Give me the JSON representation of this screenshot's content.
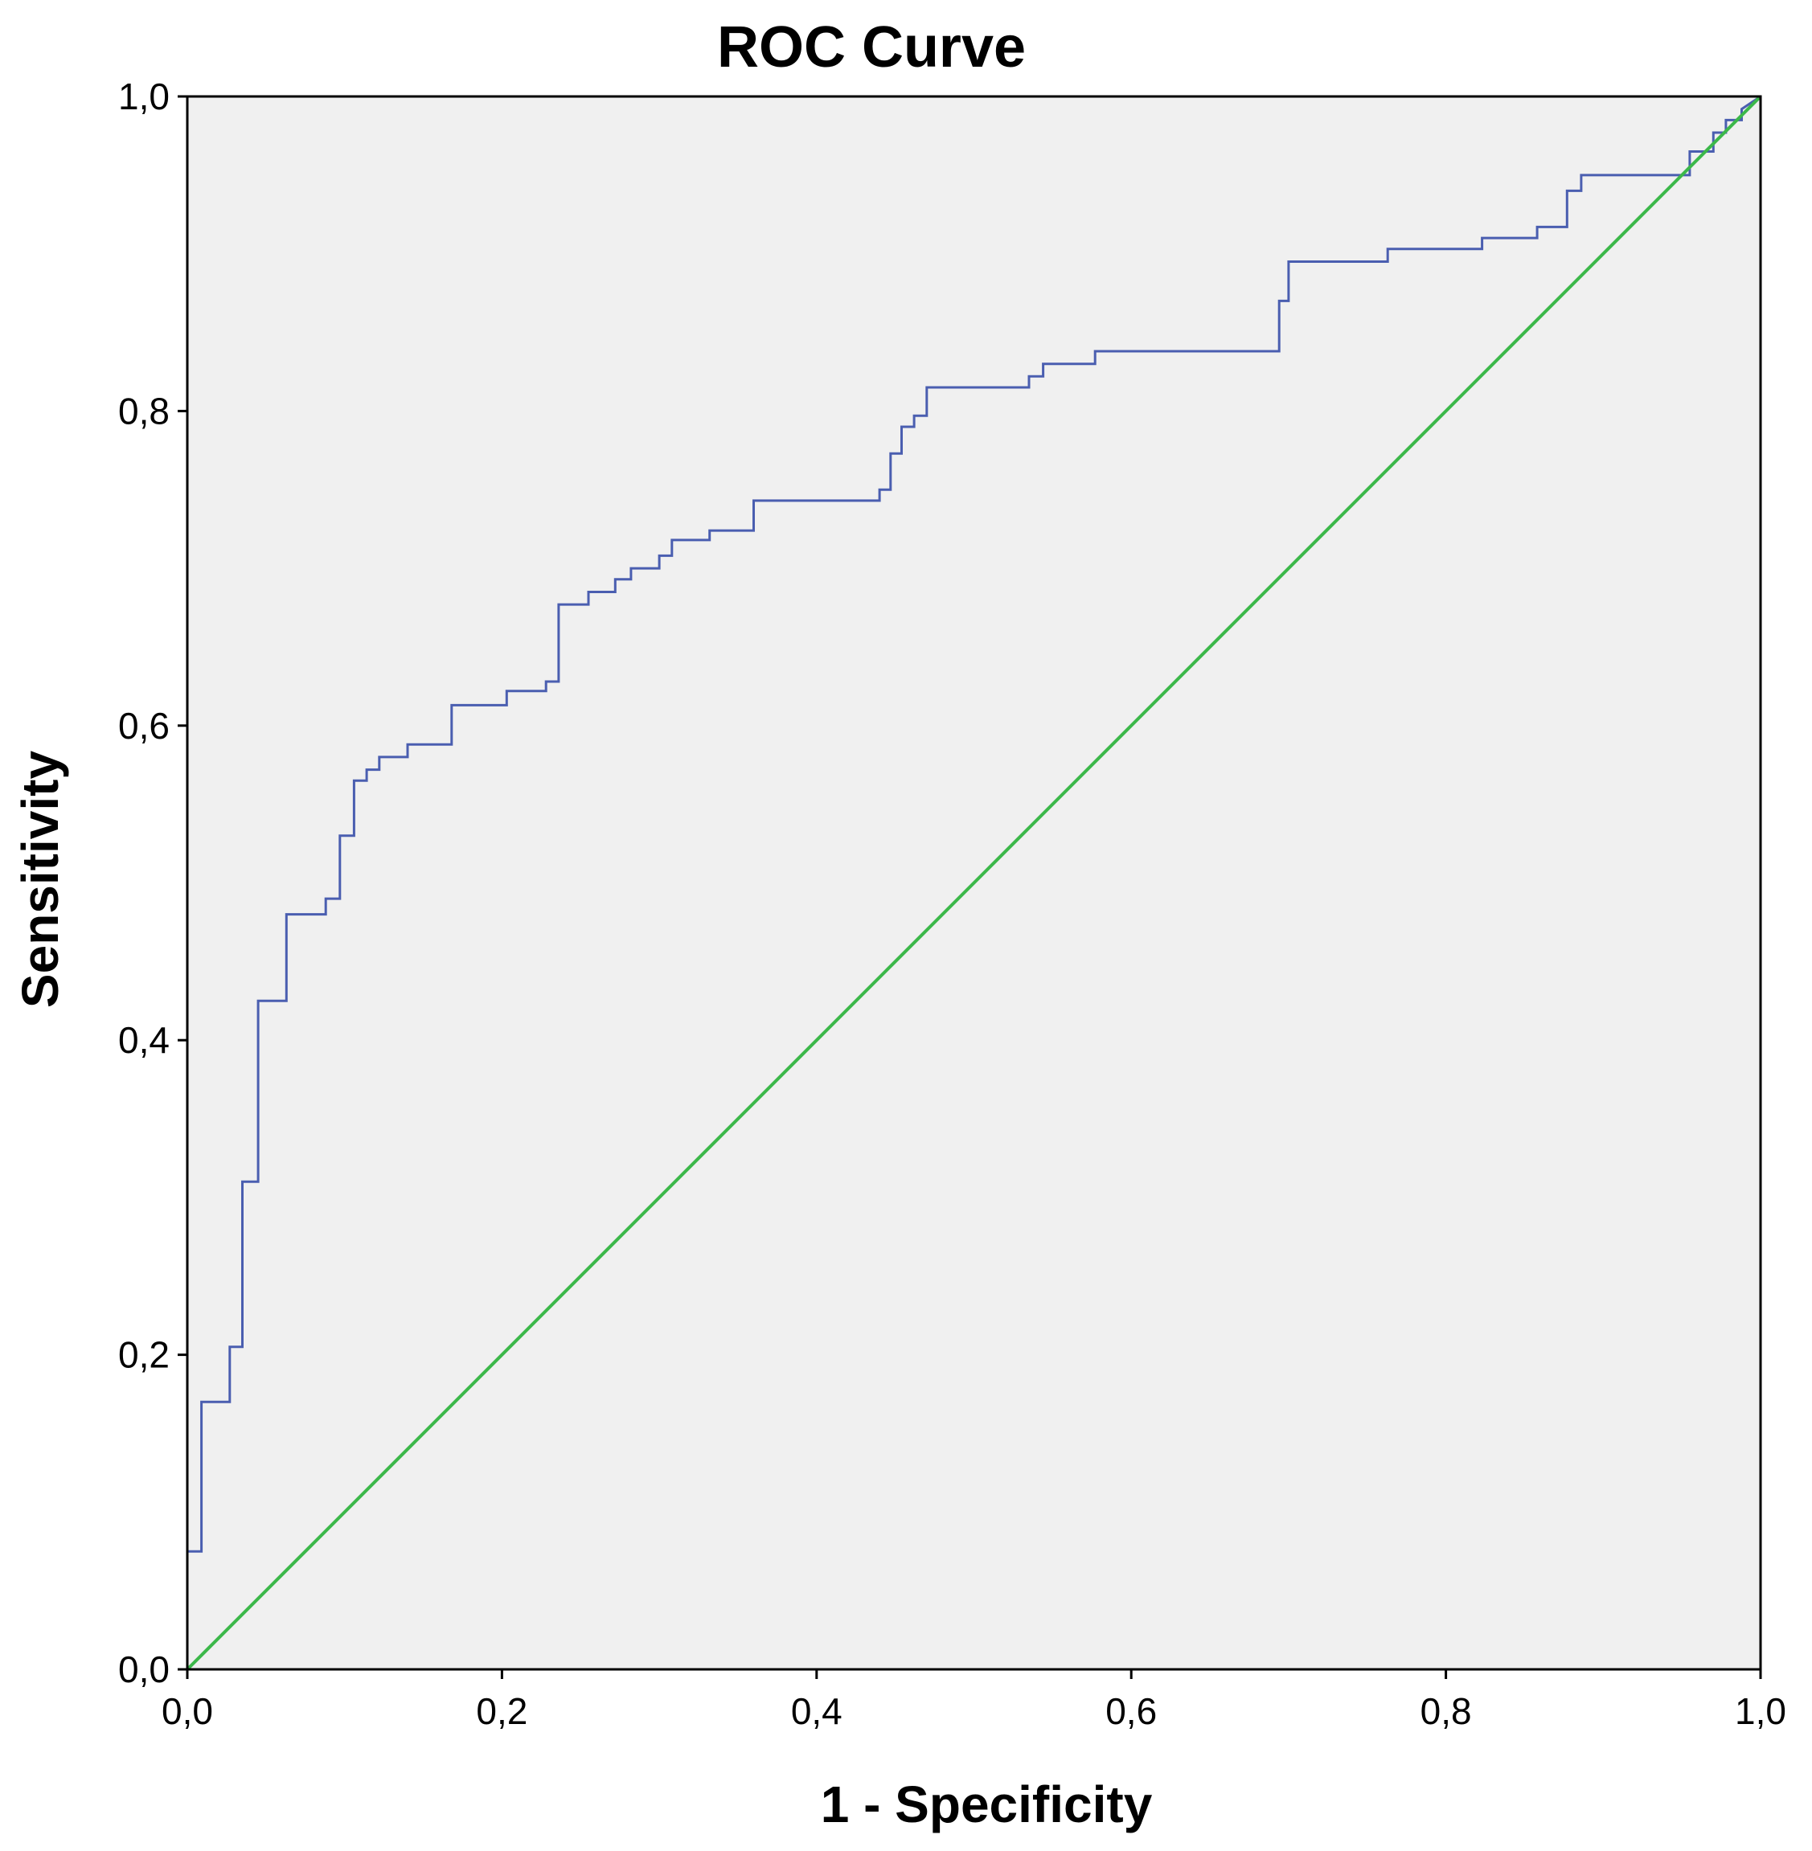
{
  "chart_data": {
    "type": "line",
    "title": "ROC Curve",
    "xlabel": "1 - Specificity",
    "ylabel": "Sensitivity",
    "xlim": [
      0.0,
      1.0
    ],
    "ylim": [
      0.0,
      1.0
    ],
    "x_ticks": [
      "0,0",
      "0,2",
      "0,4",
      "0,6",
      "0,8",
      "1,0"
    ],
    "y_ticks": [
      "0,0",
      "0,2",
      "0,4",
      "0,6",
      "0,8",
      "1,0"
    ],
    "grid": false,
    "background_color": "#f0f0f0",
    "series": [
      {
        "color": "#4a5eb0",
        "style": "step",
        "points": [
          [
            0.0,
            0.0
          ],
          [
            0.0,
            0.075
          ],
          [
            0.009,
            0.075
          ],
          [
            0.009,
            0.17
          ],
          [
            0.027,
            0.17
          ],
          [
            0.027,
            0.205
          ],
          [
            0.035,
            0.205
          ],
          [
            0.035,
            0.31
          ],
          [
            0.045,
            0.31
          ],
          [
            0.045,
            0.425
          ],
          [
            0.063,
            0.425
          ],
          [
            0.063,
            0.48
          ],
          [
            0.088,
            0.48
          ],
          [
            0.088,
            0.49
          ],
          [
            0.097,
            0.49
          ],
          [
            0.097,
            0.53
          ],
          [
            0.106,
            0.53
          ],
          [
            0.106,
            0.565
          ],
          [
            0.114,
            0.565
          ],
          [
            0.114,
            0.572
          ],
          [
            0.122,
            0.572
          ],
          [
            0.122,
            0.58
          ],
          [
            0.14,
            0.58
          ],
          [
            0.14,
            0.588
          ],
          [
            0.168,
            0.588
          ],
          [
            0.168,
            0.613
          ],
          [
            0.203,
            0.613
          ],
          [
            0.203,
            0.622
          ],
          [
            0.228,
            0.622
          ],
          [
            0.228,
            0.628
          ],
          [
            0.236,
            0.628
          ],
          [
            0.236,
            0.677
          ],
          [
            0.255,
            0.677
          ],
          [
            0.255,
            0.685
          ],
          [
            0.272,
            0.685
          ],
          [
            0.272,
            0.693
          ],
          [
            0.282,
            0.693
          ],
          [
            0.282,
            0.7
          ],
          [
            0.3,
            0.7
          ],
          [
            0.3,
            0.708
          ],
          [
            0.308,
            0.708
          ],
          [
            0.308,
            0.718
          ],
          [
            0.332,
            0.718
          ],
          [
            0.332,
            0.724
          ],
          [
            0.36,
            0.724
          ],
          [
            0.36,
            0.743
          ],
          [
            0.44,
            0.743
          ],
          [
            0.44,
            0.75
          ],
          [
            0.447,
            0.75
          ],
          [
            0.447,
            0.773
          ],
          [
            0.454,
            0.773
          ],
          [
            0.454,
            0.79
          ],
          [
            0.462,
            0.79
          ],
          [
            0.462,
            0.797
          ],
          [
            0.47,
            0.797
          ],
          [
            0.47,
            0.815
          ],
          [
            0.535,
            0.815
          ],
          [
            0.535,
            0.822
          ],
          [
            0.544,
            0.822
          ],
          [
            0.544,
            0.83
          ],
          [
            0.577,
            0.83
          ],
          [
            0.577,
            0.838
          ],
          [
            0.694,
            0.838
          ],
          [
            0.694,
            0.87
          ],
          [
            0.7,
            0.87
          ],
          [
            0.7,
            0.895
          ],
          [
            0.763,
            0.895
          ],
          [
            0.763,
            0.903
          ],
          [
            0.823,
            0.903
          ],
          [
            0.823,
            0.91
          ],
          [
            0.858,
            0.91
          ],
          [
            0.858,
            0.917
          ],
          [
            0.877,
            0.917
          ],
          [
            0.877,
            0.94
          ],
          [
            0.886,
            0.94
          ],
          [
            0.886,
            0.95
          ],
          [
            0.955,
            0.95
          ],
          [
            0.955,
            0.965
          ],
          [
            0.97,
            0.965
          ],
          [
            0.97,
            0.977
          ],
          [
            0.978,
            0.977
          ],
          [
            0.978,
            0.985
          ],
          [
            0.988,
            0.985
          ],
          [
            0.988,
            0.992
          ],
          [
            1.0,
            1.0
          ]
        ]
      },
      {
        "color": "#3cb84a",
        "style": "line",
        "points": [
          [
            0.0,
            0.0
          ],
          [
            1.0,
            1.0
          ]
        ]
      }
    ]
  }
}
